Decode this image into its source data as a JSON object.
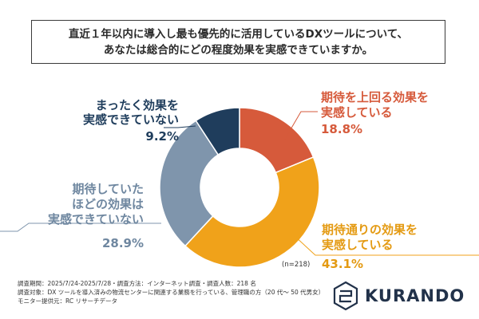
{
  "title": {
    "line1": "直近１年以内に導入し最も優先的に活用しているDXツールについて、",
    "line2": "あなたは総合的にどの程度効果を実感できていますか。"
  },
  "chart_data": {
    "type": "pie",
    "donut": true,
    "n_label": "(n=218)",
    "slices": [
      {
        "label_lines": [
          "期待を上回る効果を",
          "実感している"
        ],
        "value": 18.8,
        "display": "18.8%",
        "color": "#d65a3b"
      },
      {
        "label_lines": [
          "期待通りの効果を",
          "実感している"
        ],
        "value": 43.1,
        "display": "43.1%",
        "color": "#f0a21a"
      },
      {
        "label_lines": [
          "期待していた",
          "ほどの効果は",
          "実感できていない"
        ],
        "value": 28.9,
        "display": "28.9%",
        "color": "#7f95ac"
      },
      {
        "label_lines": [
          "まったく効果を",
          "実感できていない"
        ],
        "value": 9.2,
        "display": "9.2%",
        "color": "#1f3d5c"
      }
    ]
  },
  "notes": [
    "調査期間：2025/7/24-2025/7/28・調査方法：インターネット調査・調査人数：218 名",
    "調査対象：DX ツールを導入済みの物流センターに関連する業務を行っている、管理職の方（20 代～ 50 代男女）",
    "モニター提供元：RC リサーチデータ"
  ],
  "logo": {
    "text": "KURANDO",
    "icon": "kurando-logo-icon",
    "color": "#22324a"
  }
}
